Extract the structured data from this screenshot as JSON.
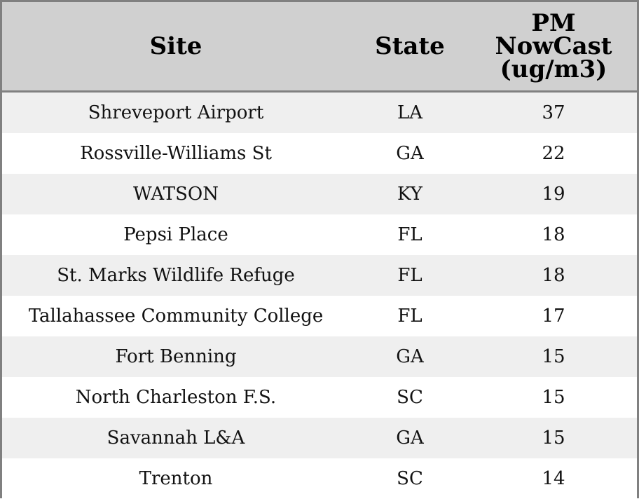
{
  "chart_data": {
    "type": "table",
    "columns": [
      "Site",
      "State",
      "PM\nNowCast\n(ug/m3)"
    ],
    "rows": [
      [
        "Shreveport Airport",
        "LA",
        "37"
      ],
      [
        "Rossville-Williams St",
        "GA",
        "22"
      ],
      [
        "WATSON",
        "KY",
        "19"
      ],
      [
        "Pepsi Place",
        "FL",
        "18"
      ],
      [
        "St. Marks Wildlife Refuge",
        "FL",
        "18"
      ],
      [
        "Tallahassee Community College",
        "FL",
        "17"
      ],
      [
        "Fort Benning",
        "GA",
        "15"
      ],
      [
        "North Charleston F.S.",
        "SC",
        "15"
      ],
      [
        "Savannah L&A",
        "GA",
        "15"
      ],
      [
        "Trenton",
        "SC",
        "14"
      ]
    ]
  },
  "colors": {
    "header_background": "#d0d0d0",
    "row_stripe": "#efefef",
    "row_plain": "#ffffff",
    "border": "#808080"
  }
}
